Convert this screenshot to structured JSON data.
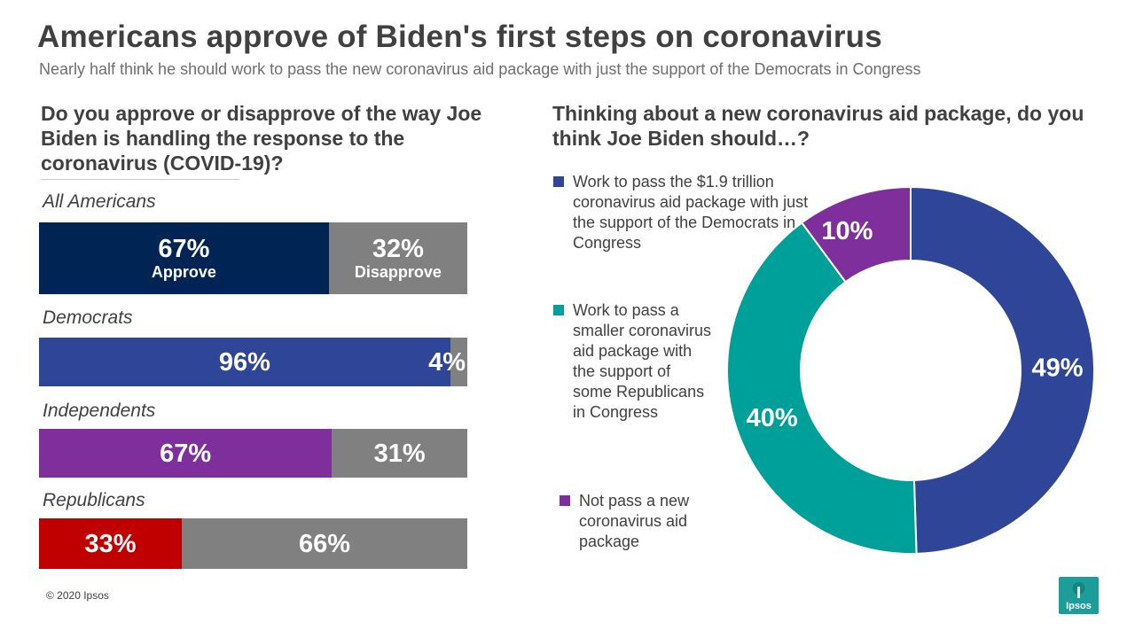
{
  "title": "Americans approve of Biden's first steps on coronavirus",
  "subtitle": "Nearly half think he should work to pass the new coronavirus aid package with just the support of the Democrats in Congress",
  "copyright": "© 2020 Ipsos",
  "logo_text": "Ipsos",
  "colors": {
    "approve_all": "#002454",
    "democrats": "#2e4598",
    "independents": "#7e2f9b",
    "republicans": "#c00000",
    "disapprove": "#808080",
    "donut_pass_full": "#2e4598",
    "donut_pass_smaller": "#00a09a",
    "donut_not_pass": "#7e2f9b",
    "logo": "#1c9d9a"
  },
  "chart_data": [
    {
      "type": "bar",
      "orientation": "horizontal-stacked",
      "title": "Do you approve or disapprove of the way Joe Biden is handling the response to the coronavirus (COVID-19)?",
      "categories": [
        "All Americans",
        "Democrats",
        "Independents",
        "Republicans"
      ],
      "series": [
        {
          "name": "Approve",
          "values": [
            67,
            96,
            67,
            33
          ],
          "labels": [
            "67%",
            "96%",
            "67%",
            "33%"
          ]
        },
        {
          "name": "Disapprove",
          "values": [
            32,
            4,
            31,
            66
          ],
          "labels": [
            "32%",
            "4%",
            "31%",
            "66%"
          ]
        }
      ]
    },
    {
      "type": "pie",
      "title": "Thinking about a new coronavirus aid package, do you think Joe Biden should…?",
      "slices": [
        {
          "name": "Work to pass the $1.9 trillion coronavirus aid package with just the support of the Democrats in Congress",
          "value": 49,
          "label": "49%",
          "color": "#2e4598"
        },
        {
          "name": "Work to pass a smaller coronavirus aid package with the support of some Republicans in Congress",
          "value": 40,
          "label": "40%",
          "color": "#00a09a"
        },
        {
          "name": "Not pass a new coronavirus aid package",
          "value": 10,
          "label": "10%",
          "color": "#7e2f9b"
        }
      ]
    }
  ]
}
